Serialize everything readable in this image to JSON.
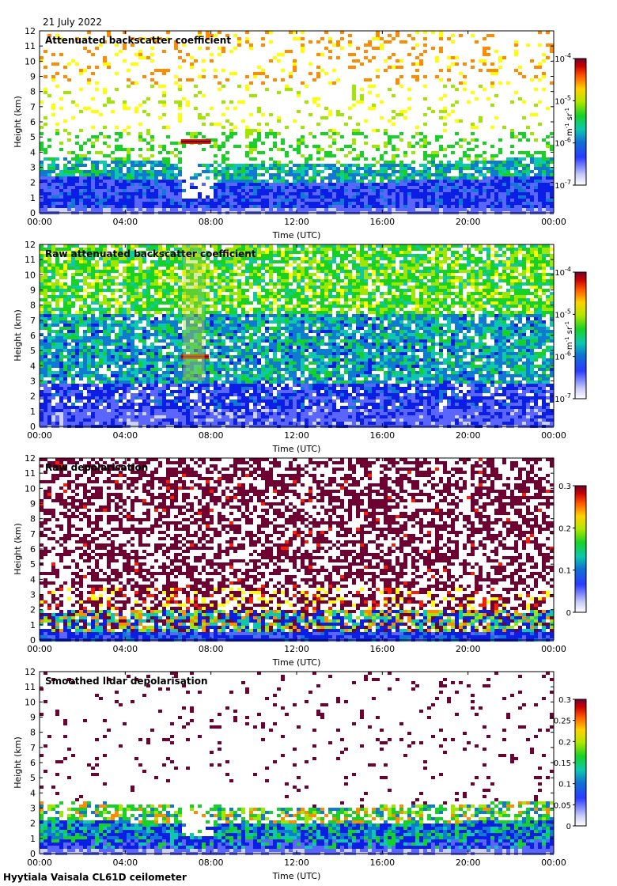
{
  "header": {
    "date": "21 July 2022"
  },
  "footer": {
    "site_instrument": "Hyytiala Vaisala CL61D ceilometer"
  },
  "palette": [
    "#ffffff",
    "#cfd2f8",
    "#5a66ff",
    "#0a1ee6",
    "#0f7ad2",
    "#0cc8ad",
    "#17d226",
    "#a0e600",
    "#ffff00",
    "#ff8c00",
    "#ff1a00",
    "#b40000",
    "#6e0032"
  ],
  "chart_data": [
    {
      "type": "heatmap",
      "title": "Attenuated backscatter coefficient",
      "xlabel": "Time (UTC)",
      "ylabel": "Height (km)",
      "x_ticks": [
        "00:00",
        "04:00",
        "08:00",
        "12:00",
        "16:00",
        "20:00",
        "00:00"
      ],
      "y_ticks": [
        "0",
        "1",
        "2",
        "3",
        "4",
        "5",
        "6",
        "7",
        "8",
        "9",
        "10",
        "11",
        "12"
      ],
      "xlim_hours": [
        0,
        24
      ],
      "ylim_km": [
        0,
        12
      ],
      "colorbar": {
        "scale": "log",
        "range": [
          1e-07,
          0.0001
        ],
        "ticks": [
          {
            "base": "10",
            "exp": "-7"
          },
          {
            "base": "10",
            "exp": "-6"
          },
          {
            "base": "10",
            "exp": "-5"
          },
          {
            "base": "10",
            "exp": "-4"
          }
        ],
        "label_unit": "m",
        "label_exp1": "-1",
        "label_unit2": "sr",
        "label_exp2": "-1"
      },
      "features": {
        "boundary_layer_top_km": 3.8,
        "cloud_layer": {
          "start_h": 6.6,
          "end_h": 8.0,
          "height_km": 4.7
        }
      }
    },
    {
      "type": "heatmap",
      "title": "Raw attenuated backscatter coefficient",
      "xlabel": "Time (UTC)",
      "ylabel": "Height (km)",
      "x_ticks": [
        "00:00",
        "04:00",
        "08:00",
        "12:00",
        "16:00",
        "20:00",
        "00:00"
      ],
      "y_ticks": [
        "0",
        "1",
        "2",
        "3",
        "4",
        "5",
        "6",
        "7",
        "8",
        "9",
        "10",
        "11",
        "12"
      ],
      "xlim_hours": [
        0,
        24
      ],
      "ylim_km": [
        0,
        12
      ],
      "colorbar": {
        "scale": "log",
        "range": [
          1e-07,
          0.0001
        ],
        "ticks": [
          {
            "base": "10",
            "exp": "-7"
          },
          {
            "base": "10",
            "exp": "-6"
          },
          {
            "base": "10",
            "exp": "-5"
          },
          {
            "base": "10",
            "exp": "-4"
          }
        ],
        "label_unit": "m",
        "label_exp1": "-1",
        "label_unit2": "sr",
        "label_exp2": "-1"
      },
      "features": {
        "cloud_layer": {
          "start_h": 6.6,
          "end_h": 7.9,
          "height_km": 4.6
        }
      }
    },
    {
      "type": "heatmap",
      "title": "Raw depolarisation",
      "xlabel": "Time (UTC)",
      "ylabel": "Height (km)",
      "x_ticks": [
        "00:00",
        "04:00",
        "08:00",
        "12:00",
        "16:00",
        "20:00",
        "00:00"
      ],
      "y_ticks": [
        "0",
        "1",
        "2",
        "3",
        "4",
        "5",
        "6",
        "7",
        "8",
        "9",
        "10",
        "11",
        "12"
      ],
      "xlim_hours": [
        0,
        24
      ],
      "ylim_km": [
        0,
        12
      ],
      "colorbar": {
        "scale": "linear",
        "range": [
          0,
          0.3
        ],
        "ticks": [
          "0",
          "0.1",
          "0.2",
          "0.3"
        ]
      }
    },
    {
      "type": "heatmap",
      "title": "Smoothed lidar depolarisation",
      "xlabel": "Time (UTC)",
      "ylabel": "Height (km)",
      "x_ticks": [
        "00:00",
        "04:00",
        "08:00",
        "12:00",
        "16:00",
        "20:00",
        "00:00"
      ],
      "y_ticks": [
        "0",
        "1",
        "2",
        "3",
        "4",
        "5",
        "6",
        "7",
        "8",
        "9",
        "10",
        "11",
        "12"
      ],
      "xlim_hours": [
        0,
        24
      ],
      "ylim_km": [
        0,
        12
      ],
      "colorbar": {
        "scale": "linear",
        "range": [
          0,
          0.3
        ],
        "ticks": [
          "0",
          "0.05",
          "0.1",
          "0.15",
          "0.2",
          "0.25",
          "0.3"
        ]
      }
    }
  ]
}
